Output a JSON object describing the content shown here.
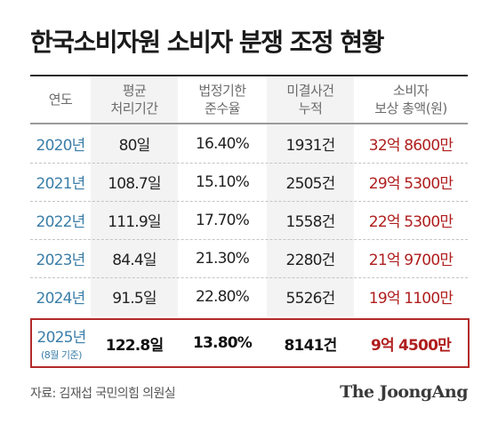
{
  "title": "한국소비자원 소비자 분쟁 조정 현황",
  "headers": [
    {
      "line1": "연도",
      "line2": ""
    },
    {
      "line1": "평균",
      "line2": "처리기간"
    },
    {
      "line1": "법정기한",
      "line2": "준수율"
    },
    {
      "line1": "미결사건",
      "line2": "누적"
    },
    {
      "line1": "소비자",
      "line2": "보상 총액(원)"
    }
  ],
  "rows": [
    {
      "year": "2020년",
      "period": "80일",
      "rate": "16.40%",
      "pending": "1931건",
      "compensation": "32억 8600만"
    },
    {
      "year": "2021년",
      "period": "108.7일",
      "rate": "15.10%",
      "pending": "2505건",
      "compensation": "29억 5300만"
    },
    {
      "year": "2022년",
      "period": "111.9일",
      "rate": "17.70%",
      "pending": "1558건",
      "compensation": "22억 5300만"
    },
    {
      "year": "2023년",
      "period": "84.4일",
      "rate": "21.30%",
      "pending": "2280건",
      "compensation": "21억 9700만"
    },
    {
      "year": "2024년",
      "period": "91.5일",
      "rate": "22.80%",
      "pending": "5526건",
      "compensation": "19억 1100만"
    }
  ],
  "highlight_row": {
    "year": "2025년",
    "note": "(8월 기준)",
    "period": "122.8일",
    "rate": "13.80%",
    "pending": "8141건",
    "compensation": "9억 4500만"
  },
  "source": "자료: 김재섭 국민의힘 의원실",
  "logo": "The JoongAng",
  "colors": {
    "year": "#3b7ea8",
    "compensation": "#b01e1e",
    "highlight_border": "#b42a2a",
    "shaded_column": "#f3f3f3"
  },
  "chart_data": {
    "type": "table",
    "title": "한국소비자원 소비자 분쟁 조정 현황",
    "columns": [
      "연도",
      "평균 처리기간",
      "법정기한 준수율",
      "미결사건 누적",
      "소비자 보상 총액(원)"
    ],
    "rows": [
      [
        "2020년",
        "80일",
        "16.40%",
        "1931건",
        "32억 8600만"
      ],
      [
        "2021년",
        "108.7일",
        "15.10%",
        "2505건",
        "29억 5300만"
      ],
      [
        "2022년",
        "111.9일",
        "17.70%",
        "1558건",
        "22억 5300만"
      ],
      [
        "2023년",
        "84.4일",
        "21.30%",
        "2280건",
        "21억 9700만"
      ],
      [
        "2024년",
        "91.5일",
        "22.80%",
        "5526건",
        "19억 1100만"
      ],
      [
        "2025년 (8월 기준)",
        "122.8일",
        "13.80%",
        "8141건",
        "9억 4500만"
      ]
    ]
  }
}
